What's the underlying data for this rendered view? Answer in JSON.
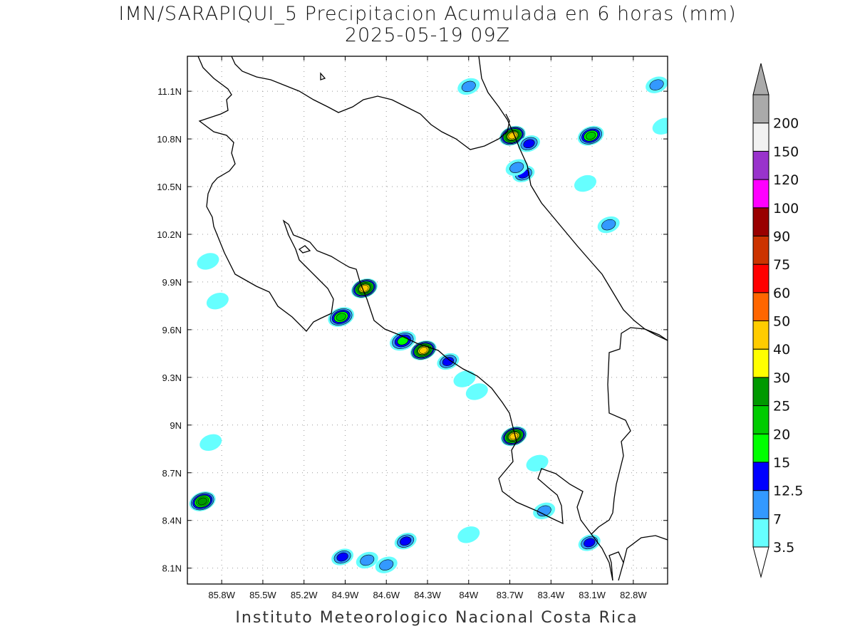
{
  "title": {
    "line1": "IMN/SARAPIQUI_5 Precipitacion Acumulada en 6 horas (mm)",
    "line2": "2025-05-19 09Z"
  },
  "credit": "Instituto Meteorologico Nacional Costa Rica",
  "map": {
    "lon_range": [
      -86.05,
      -82.55
    ],
    "lat_range": [
      8.0,
      11.32
    ],
    "lon_ticks": [
      {
        "value": -85.8,
        "label": "85.8W"
      },
      {
        "value": -85.5,
        "label": "85.5W"
      },
      {
        "value": -85.2,
        "label": "85.2W"
      },
      {
        "value": -84.9,
        "label": "84.9W"
      },
      {
        "value": -84.6,
        "label": "84.6W"
      },
      {
        "value": -84.3,
        "label": "84.3W"
      },
      {
        "value": -84.0,
        "label": "84W"
      },
      {
        "value": -83.7,
        "label": "83.7W"
      },
      {
        "value": -83.4,
        "label": "83.4W"
      },
      {
        "value": -83.1,
        "label": "83.1W"
      },
      {
        "value": -82.8,
        "label": "82.8W"
      }
    ],
    "lat_ticks": [
      {
        "value": 11.1,
        "label": "11.1N"
      },
      {
        "value": 10.8,
        "label": "10.8N"
      },
      {
        "value": 10.5,
        "label": "10.5N"
      },
      {
        "value": 10.2,
        "label": "10.2N"
      },
      {
        "value": 9.9,
        "label": "9.9N"
      },
      {
        "value": 9.6,
        "label": "9.6N"
      },
      {
        "value": 9.3,
        "label": "9.3N"
      },
      {
        "value": 9.0,
        "label": "9N"
      },
      {
        "value": 8.7,
        "label": "8.7N"
      },
      {
        "value": 8.4,
        "label": "8.4N"
      },
      {
        "value": 8.1,
        "label": "8.1N"
      }
    ],
    "grid": true,
    "grid_style": "dotted",
    "coastline_color": "#000000"
  },
  "colorbar": {
    "labels": [
      "3.5",
      "7",
      "12.5",
      "15",
      "20",
      "25",
      "30",
      "40",
      "50",
      "60",
      "75",
      "90",
      "100",
      "120",
      "150",
      "200"
    ],
    "colors": [
      "#66ffff",
      "#3399ff",
      "#0000ff",
      "#00ff00",
      "#00cc00",
      "#009900",
      "#ffff00",
      "#ffcc00",
      "#ff6600",
      "#ff0000",
      "#cc3300",
      "#990000",
      "#ff00ff",
      "#9933cc",
      "#f2f2f2",
      "#aaaaaa"
    ],
    "over_color": "#aaaaaa",
    "under_color": "#ffffff"
  },
  "precip_cells": [
    {
      "lon": -85.94,
      "lat": 8.52,
      "max": 25
    },
    {
      "lon": -84.92,
      "lat": 8.17,
      "max": 12.5
    },
    {
      "lon": -84.46,
      "lat": 8.27,
      "max": 12.5
    },
    {
      "lon": -84.6,
      "lat": 8.12,
      "max": 7
    },
    {
      "lon": -84.74,
      "lat": 8.15,
      "max": 7
    },
    {
      "lon": -83.12,
      "lat": 8.26,
      "max": 12.5
    },
    {
      "lon": -83.45,
      "lat": 8.46,
      "max": 7
    },
    {
      "lon": -83.67,
      "lat": 8.93,
      "max": 40
    },
    {
      "lon": -84.33,
      "lat": 9.47,
      "max": 40
    },
    {
      "lon": -84.48,
      "lat": 9.53,
      "max": 15
    },
    {
      "lon": -84.15,
      "lat": 9.4,
      "max": 12.5
    },
    {
      "lon": -84.93,
      "lat": 9.68,
      "max": 20
    },
    {
      "lon": -84.76,
      "lat": 9.86,
      "max": 40
    },
    {
      "lon": -83.68,
      "lat": 10.82,
      "max": 40
    },
    {
      "lon": -83.56,
      "lat": 10.77,
      "max": 12.5
    },
    {
      "lon": -83.11,
      "lat": 10.82,
      "max": 20
    },
    {
      "lon": -83.6,
      "lat": 10.58,
      "max": 12.5
    },
    {
      "lon": -83.65,
      "lat": 10.62,
      "max": 7
    },
    {
      "lon": -84.0,
      "lat": 11.13,
      "max": 7
    },
    {
      "lon": -82.63,
      "lat": 11.14,
      "max": 7
    },
    {
      "lon": -82.98,
      "lat": 10.26,
      "max": 7
    },
    {
      "lon": -84.03,
      "lat": 9.29,
      "max": 3.5
    },
    {
      "lon": -83.94,
      "lat": 9.21,
      "max": 3.5
    },
    {
      "lon": -84.0,
      "lat": 8.31,
      "max": 3.5
    },
    {
      "lon": -83.5,
      "lat": 8.76,
      "max": 3.5
    },
    {
      "lon": -85.9,
      "lat": 10.03,
      "max": 3.5
    },
    {
      "lon": -85.83,
      "lat": 9.78,
      "max": 3.5
    },
    {
      "lon": -85.88,
      "lat": 8.89,
      "max": 3.5
    },
    {
      "lon": -83.15,
      "lat": 10.52,
      "max": 3.5
    },
    {
      "lon": -82.58,
      "lat": 10.88,
      "max": 3.5
    }
  ]
}
